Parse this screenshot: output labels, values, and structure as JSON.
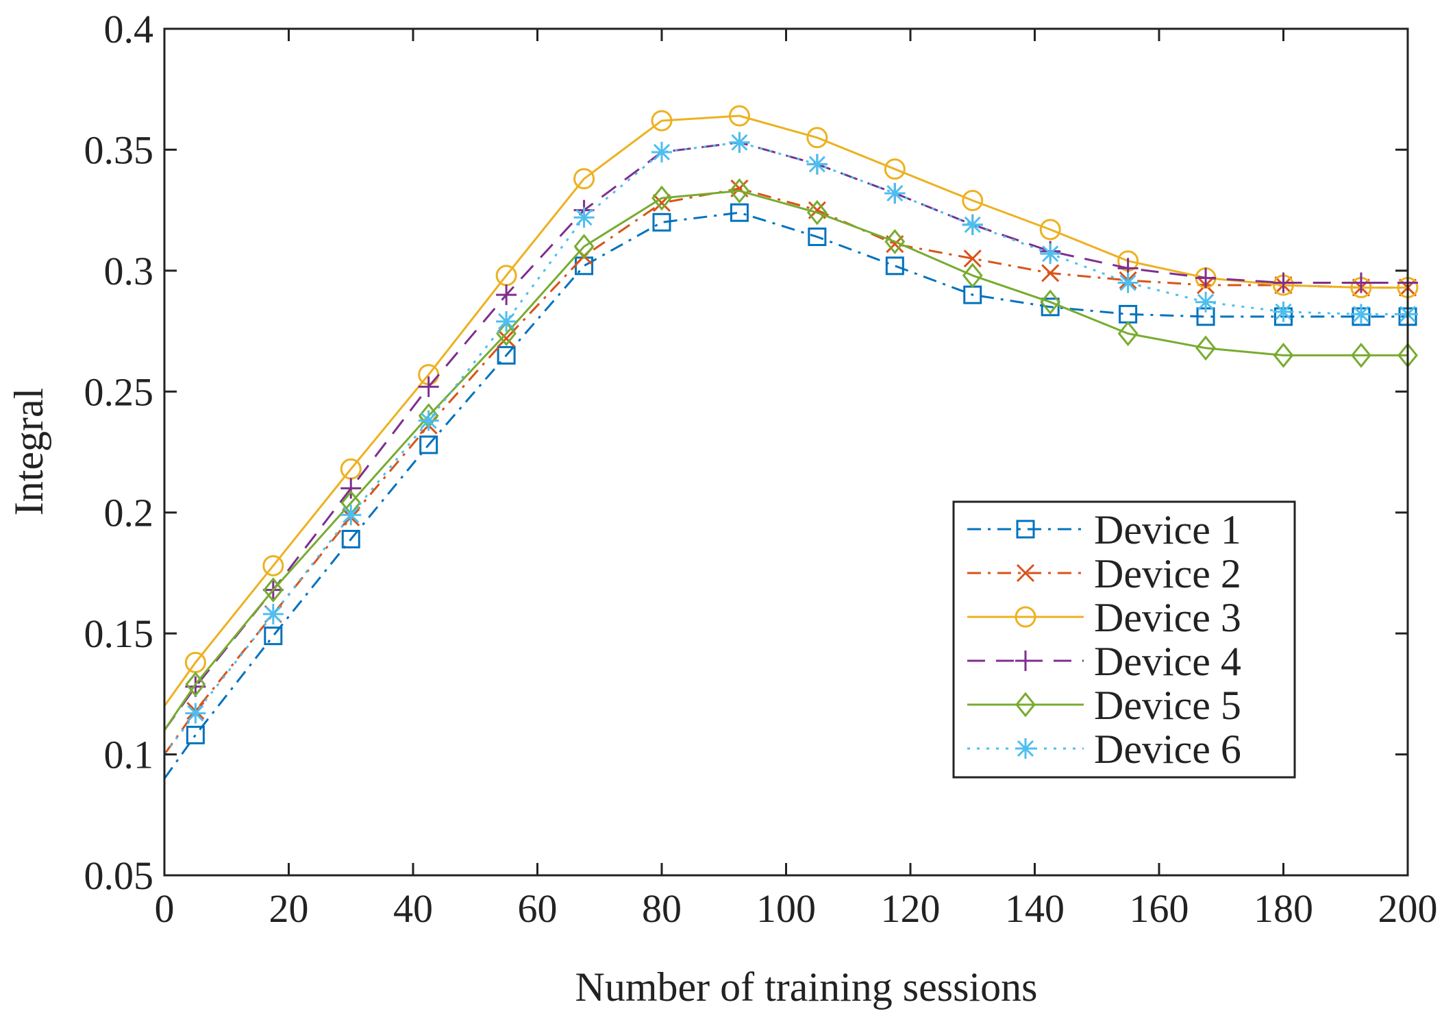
{
  "chart_data": {
    "type": "line",
    "title": "",
    "xlabel": "Number of training sessions",
    "ylabel": "Integral",
    "xlim": [
      0,
      200
    ],
    "ylim": [
      0.05,
      0.4
    ],
    "xticks": [
      0,
      20,
      40,
      60,
      80,
      100,
      120,
      140,
      160,
      180,
      200
    ],
    "xtick_labels": [
      "0",
      "20",
      "40",
      "60",
      "80",
      "100",
      "120",
      "140",
      "160",
      "180",
      "200"
    ],
    "yticks": [
      0.05,
      0.1,
      0.15,
      0.2,
      0.25,
      0.3,
      0.35,
      0.4
    ],
    "ytick_labels": [
      "0.05",
      "0.1",
      "0.15",
      "0.2",
      "0.25",
      "0.3",
      "0.35",
      "0.4"
    ],
    "grid": false,
    "legend_position": "right",
    "x": [
      0,
      5,
      17.5,
      30,
      42.5,
      55,
      67.5,
      80,
      92.5,
      105,
      117.5,
      130,
      142.5,
      155,
      167.5,
      180,
      192.5,
      200
    ],
    "series": [
      {
        "name": "Device 1",
        "color": "#0072BD",
        "line": "dashdot",
        "marker": "square",
        "values": [
          0.09,
          0.108,
          0.149,
          0.189,
          0.228,
          0.265,
          0.302,
          0.32,
          0.324,
          0.314,
          0.302,
          0.29,
          0.285,
          0.282,
          0.281,
          0.281,
          0.281,
          0.281
        ]
      },
      {
        "name": "Device 2",
        "color": "#D95319",
        "line": "dashdot",
        "marker": "x",
        "values": [
          0.1,
          0.118,
          0.158,
          0.198,
          0.236,
          0.272,
          0.306,
          0.328,
          0.334,
          0.325,
          0.311,
          0.305,
          0.299,
          0.296,
          0.294,
          0.294,
          0.293,
          0.293
        ]
      },
      {
        "name": "Device 3",
        "color": "#EDB120",
        "line": "solid",
        "marker": "circle",
        "values": [
          0.12,
          0.138,
          0.178,
          0.218,
          0.257,
          0.298,
          0.338,
          0.362,
          0.364,
          0.355,
          0.342,
          0.329,
          0.317,
          0.304,
          0.297,
          0.294,
          0.293,
          0.293
        ]
      },
      {
        "name": "Device 4",
        "color": "#7E2F8E",
        "line": "dashed",
        "marker": "plus",
        "values": [
          0.11,
          0.128,
          0.168,
          0.21,
          0.252,
          0.29,
          0.325,
          0.349,
          0.353,
          0.344,
          0.332,
          0.319,
          0.308,
          0.301,
          0.297,
          0.295,
          0.295,
          0.295
        ]
      },
      {
        "name": "Device 5",
        "color": "#77AC30",
        "line": "solid",
        "marker": "diamond",
        "values": [
          0.11,
          0.129,
          0.168,
          0.204,
          0.24,
          0.274,
          0.31,
          0.33,
          0.333,
          0.324,
          0.312,
          0.298,
          0.287,
          0.274,
          0.268,
          0.265,
          0.265,
          0.265
        ]
      },
      {
        "name": "Device 6",
        "color": "#4DBEEE",
        "line": "dotted",
        "marker": "asterisk",
        "values": [
          0.1,
          0.117,
          0.158,
          0.199,
          0.238,
          0.279,
          0.322,
          0.349,
          0.353,
          0.344,
          0.332,
          0.319,
          0.307,
          0.295,
          0.287,
          0.283,
          0.282,
          0.282
        ]
      }
    ]
  }
}
